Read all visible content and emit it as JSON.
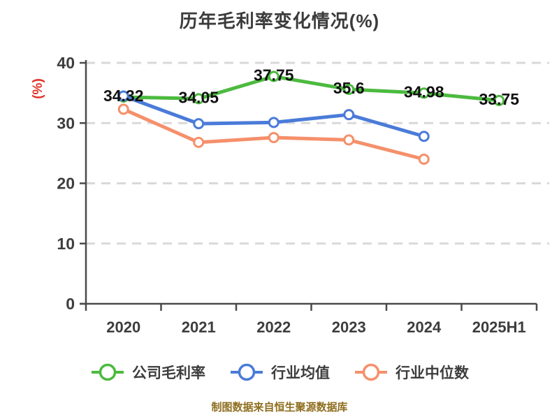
{
  "chart_data": {
    "type": "line",
    "title": "历年毛利率变化情况(%)",
    "ylabel": "(%)",
    "xlabel": "",
    "categories": [
      "2020",
      "2021",
      "2022",
      "2023",
      "2024",
      "2025H1"
    ],
    "series": [
      {
        "name": "公司毛利率",
        "color": "#4cba3f",
        "values": [
          34.32,
          34.05,
          37.75,
          35.6,
          34.98,
          33.75
        ],
        "point_labels": [
          "34.32",
          "34.05",
          "37.75",
          "35.6",
          "34.98",
          "33.75"
        ]
      },
      {
        "name": "行业均值",
        "color": "#4a7bd9",
        "values": [
          34.5,
          29.9,
          30.1,
          31.4,
          27.8,
          null
        ],
        "point_labels": []
      },
      {
        "name": "行业中位数",
        "color": "#f5906b",
        "values": [
          32.3,
          26.8,
          27.6,
          27.2,
          24.0,
          null
        ],
        "point_labels": []
      }
    ],
    "ylim": [
      0,
      40
    ],
    "yticks": [
      0,
      10,
      20,
      30,
      40
    ],
    "grid": {
      "horizontal": true,
      "style": "dashed",
      "color": "#d9d9d9"
    },
    "legend_position": "bottom",
    "colors": {
      "axis": "#4a4a4a",
      "tick_label": "#3d3d3d",
      "data_label": "#111111",
      "ylabel": "#e03228",
      "title": "#3b3b3b",
      "background": "#ffffff"
    }
  },
  "footer": {
    "source_note": "制图数据来自恒生聚源数据库"
  }
}
